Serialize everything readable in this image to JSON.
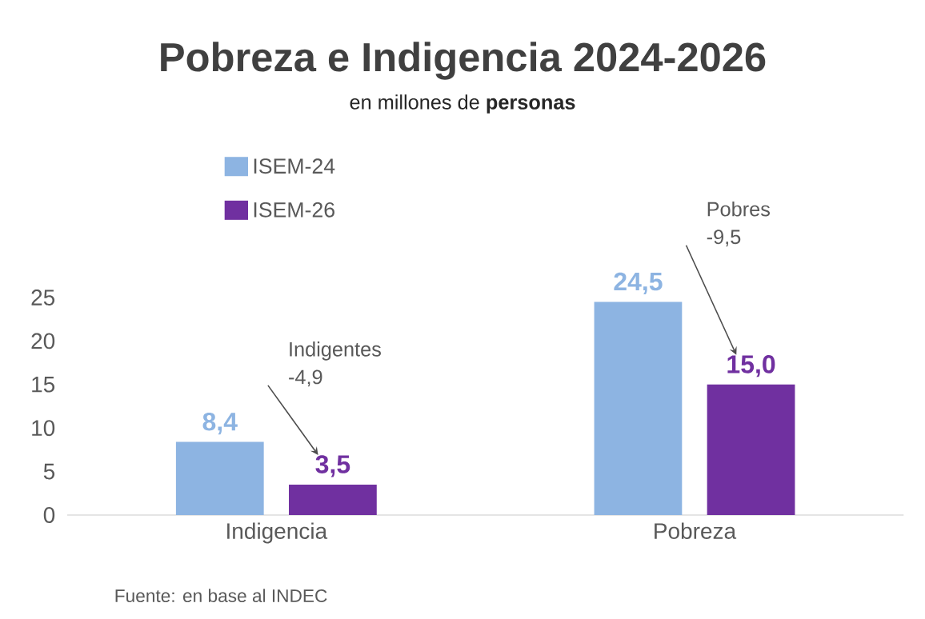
{
  "chart_data": {
    "type": "bar",
    "title": "Pobreza e Indigencia 2024-2026",
    "subtitle": "en millones de **personas**",
    "categories": [
      "Indigencia",
      "Pobreza"
    ],
    "series": [
      {
        "name": "ISEM-24",
        "color": "#8db4e2",
        "values": [
          8.4,
          24.5
        ],
        "value_labels": [
          "8,4",
          "24,5"
        ]
      },
      {
        "name": "ISEM-26",
        "color": "#7030a0",
        "values": [
          3.5,
          15.0
        ],
        "value_labels": [
          "3,5",
          "15,0"
        ]
      }
    ],
    "ylim": [
      0,
      25
    ],
    "yticks": [
      0,
      5,
      10,
      15,
      20,
      25
    ],
    "grid": false,
    "legend": "top left",
    "annotations": [
      "Indigentes -4,9",
      "Pobres -9,5",
      "Fuente: en base al INDEC"
    ]
  }
}
